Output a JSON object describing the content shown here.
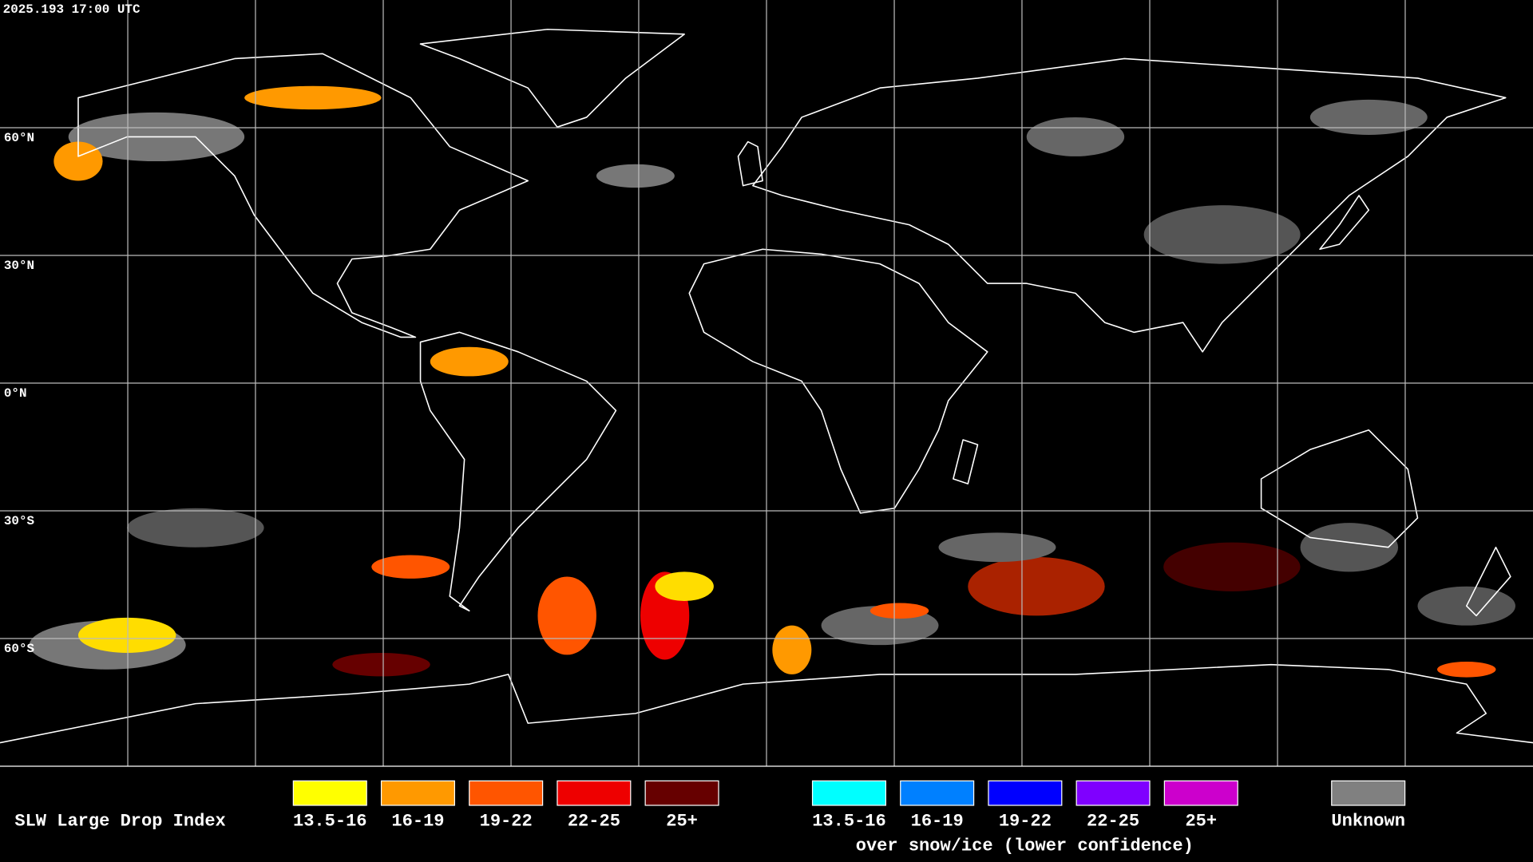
{
  "timestamp": "2025.193 17:00 UTC",
  "latitude_labels": [
    "60°N",
    "30°N",
    "0°N",
    "30°S",
    "60°S"
  ],
  "legend": {
    "title": "SLW Large Drop Index",
    "items": [
      {
        "label": "13.5-16",
        "color": "#ffff00"
      },
      {
        "label": "16-19",
        "color": "#ff9900"
      },
      {
        "label": "19-22",
        "color": "#ff5500"
      },
      {
        "label": "22-25",
        "color": "#ee0000"
      },
      {
        "label": "25+",
        "color": "#660000"
      }
    ],
    "snow_ice_items": [
      {
        "label": "13.5-16",
        "color": "#00ffff"
      },
      {
        "label": "16-19",
        "color": "#0080ff"
      },
      {
        "label": "19-22",
        "color": "#0000ff"
      },
      {
        "label": "22-25",
        "color": "#7f00ff"
      },
      {
        "label": "25+",
        "color": "#cc00cc"
      }
    ],
    "snow_ice_note": "over snow/ice (lower confidence)",
    "unknown": {
      "label": "Unknown",
      "color": "#808080"
    }
  }
}
